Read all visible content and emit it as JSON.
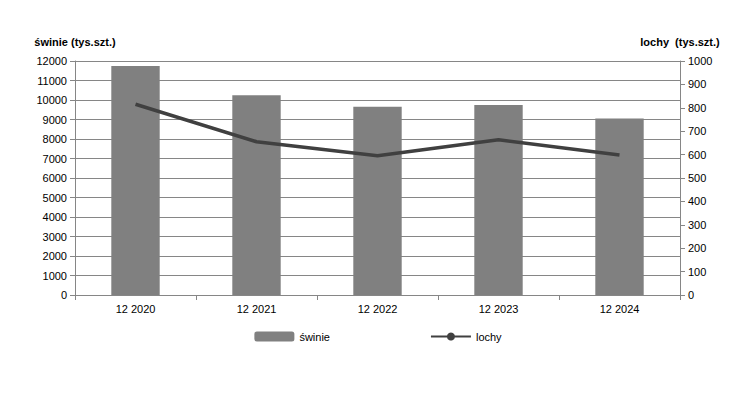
{
  "chart_data": {
    "type": "bar",
    "categories": [
      "12 2020",
      "12 2021",
      "12 2022",
      "12 2023",
      "12 2024"
    ],
    "ylabel": "świnie (tys.szt.)",
    "y2label": "lochy  (tys.szt.)",
    "series": [
      {
        "name": "świnie",
        "type": "bar",
        "color": "#808080",
        "values": [
          11750,
          10250,
          9650,
          9750,
          9050
        ]
      },
      {
        "name": "lochy",
        "type": "line",
        "axis": "y2",
        "color": "#404040",
        "marker": "none",
        "line_style": "solid",
        "values": [
          815,
          655,
          595,
          663,
          598
        ]
      }
    ],
    "ylim": [
      0,
      12000
    ],
    "yticks": [
      0,
      1000,
      2000,
      3000,
      4000,
      5000,
      6000,
      7000,
      8000,
      9000,
      10000,
      11000,
      12000
    ],
    "y2lim": [
      0,
      1000
    ],
    "y2ticks": [
      0,
      100,
      200,
      300,
      400,
      500,
      600,
      700,
      800,
      900,
      1000
    ],
    "grid": true,
    "legend": "bottom"
  }
}
